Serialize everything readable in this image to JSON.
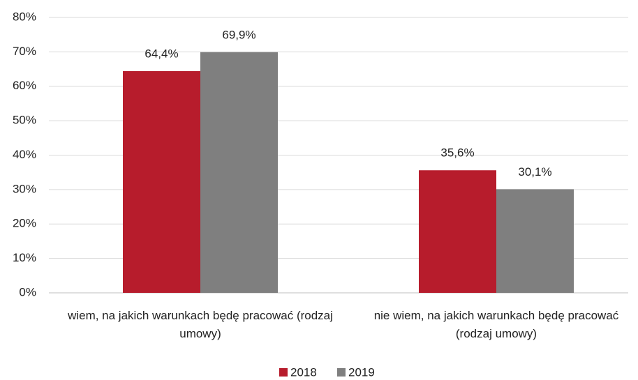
{
  "chart_data": {
    "type": "bar",
    "categories": [
      "wiem, na jakich warunkach będę pracować (rodzaj umowy)",
      "nie wiem, na jakich warunkach będę pracować (rodzaj umowy)"
    ],
    "series": [
      {
        "name": "2018",
        "color": "#b71c2c",
        "values": [
          64.4,
          35.6
        ],
        "value_labels": [
          "64,4%",
          "35,6%"
        ]
      },
      {
        "name": "2019",
        "color": "#7f7f7f",
        "values": [
          69.9,
          30.1
        ],
        "value_labels": [
          "69,9%",
          "30,1%"
        ]
      }
    ],
    "ylim": [
      0,
      80
    ],
    "yticks": [
      {
        "value": 0,
        "label": "0%"
      },
      {
        "value": 10,
        "label": "10%"
      },
      {
        "value": 20,
        "label": "20%"
      },
      {
        "value": 30,
        "label": "30%"
      },
      {
        "value": 40,
        "label": "40%"
      },
      {
        "value": 50,
        "label": "50%"
      },
      {
        "value": 60,
        "label": "60%"
      },
      {
        "value": 70,
        "label": "70%"
      },
      {
        "value": 80,
        "label": "80%"
      }
    ],
    "grid": true,
    "legend": "bottom"
  }
}
